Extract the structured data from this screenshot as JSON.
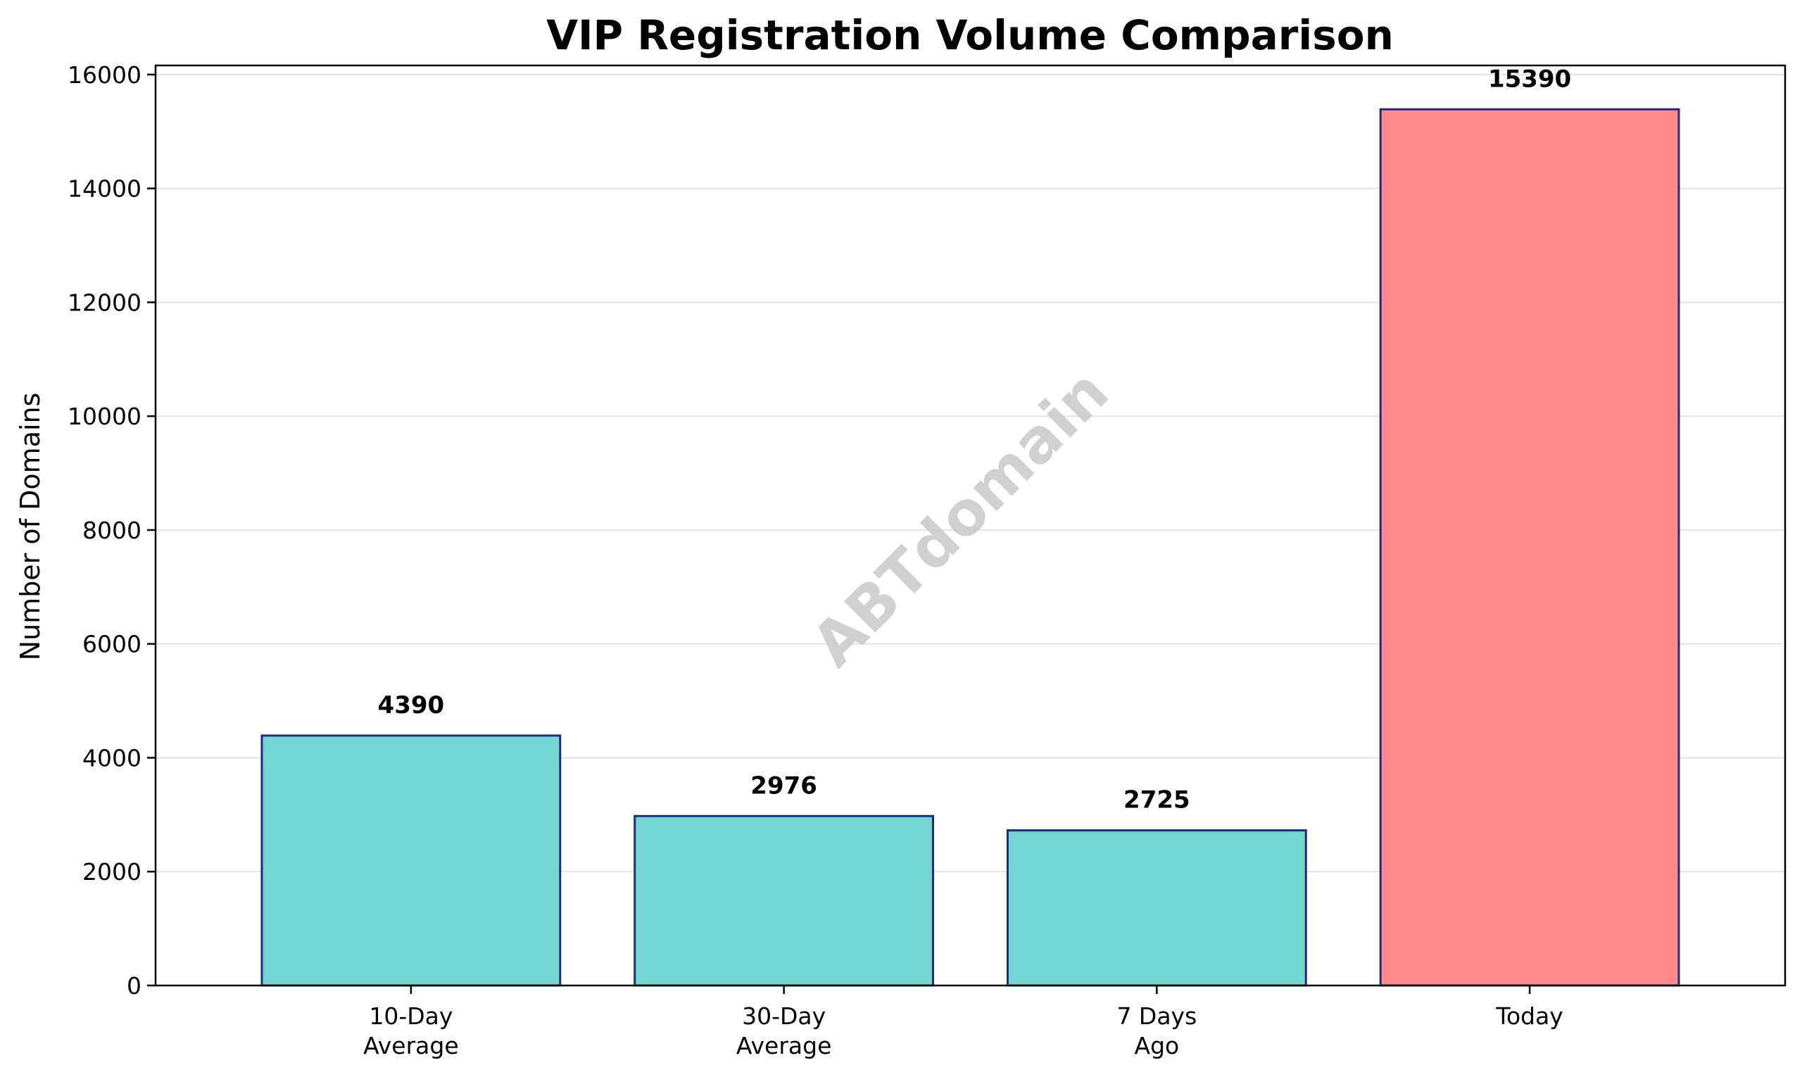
{
  "chart_data": {
    "type": "bar",
    "title": "VIP Registration Volume Comparison",
    "xlabel": "",
    "ylabel": "Number of Domains",
    "categories": [
      [
        "10-Day",
        "Average"
      ],
      [
        "30-Day",
        "Average"
      ],
      [
        "7 Days",
        "Ago"
      ],
      [
        "Today"
      ]
    ],
    "values": [
      4390,
      2976,
      2725,
      15390
    ],
    "data_labels": [
      "4390",
      "2976",
      "2725",
      "15390"
    ],
    "bar_colors": [
      "#72d5cf",
      "#72d5cf",
      "#72d5cf",
      "#ff8888"
    ],
    "bar_edge_color": "#1f2a80",
    "ylim": [
      0,
      16160
    ],
    "yticks": [
      0,
      2000,
      4000,
      6000,
      8000,
      10000,
      12000,
      14000,
      16000
    ],
    "grid": "horizontal",
    "legend": "none"
  },
  "watermark": "ABTdomain"
}
